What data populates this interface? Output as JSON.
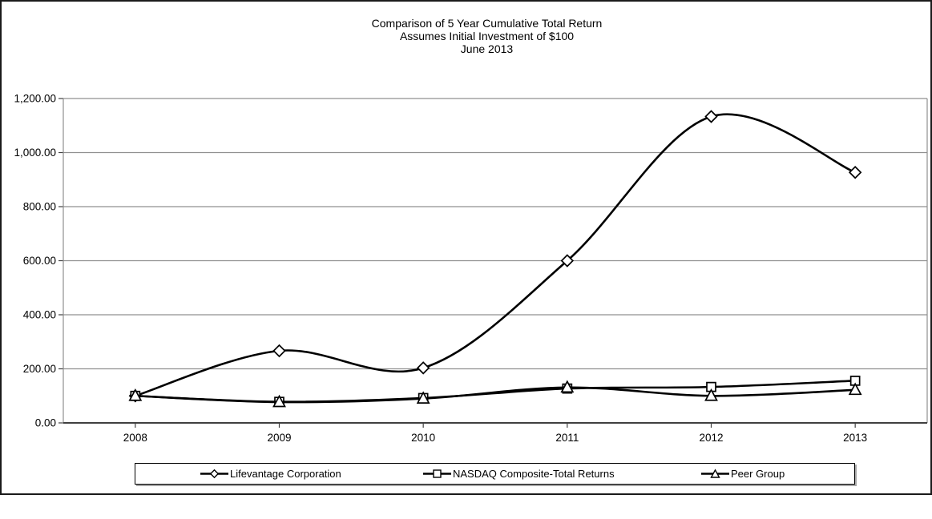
{
  "title": {
    "line1": "Comparison of 5 Year Cumulative Total Return",
    "line2": "Assumes Initial Investment of $100",
    "line3": "June 2013"
  },
  "chart_data": {
    "type": "line",
    "smooth": true,
    "categories": [
      "2008",
      "2009",
      "2010",
      "2011",
      "2012",
      "2013"
    ],
    "series": [
      {
        "name": "Lifevantage Corporation",
        "marker": "diamond",
        "values": [
          100.0,
          266.67,
          203.33,
          600.0,
          1133.33,
          926.67
        ]
      },
      {
        "name": "NASDAQ Composite-Total Returns",
        "marker": "square",
        "values": [
          100.0,
          78.0,
          92.0,
          127.0,
          133.0,
          156.0
        ]
      },
      {
        "name": "Peer Group",
        "marker": "triangle",
        "values": [
          100.0,
          77.0,
          90.0,
          131.0,
          100.0,
          122.0
        ]
      }
    ],
    "ylim": [
      0,
      1200
    ],
    "ytick_step": 200,
    "ytick_labels": [
      "0.00",
      "200.00",
      "400.00",
      "600.00",
      "800.00",
      "1,000.00",
      "1,200.00"
    ],
    "grid": "horizontal",
    "legend_position": "bottom",
    "colors": {
      "line": "#000000",
      "grid": "#909090",
      "axis": "#404040",
      "text": "#000000",
      "marker_fill": "#ffffff"
    }
  },
  "legend": {
    "items": [
      {
        "label": "Lifevantage Corporation",
        "marker": "diamond"
      },
      {
        "label": "NASDAQ Composite-Total Returns",
        "marker": "square"
      },
      {
        "label": "Peer Group",
        "marker": "triangle"
      }
    ]
  }
}
